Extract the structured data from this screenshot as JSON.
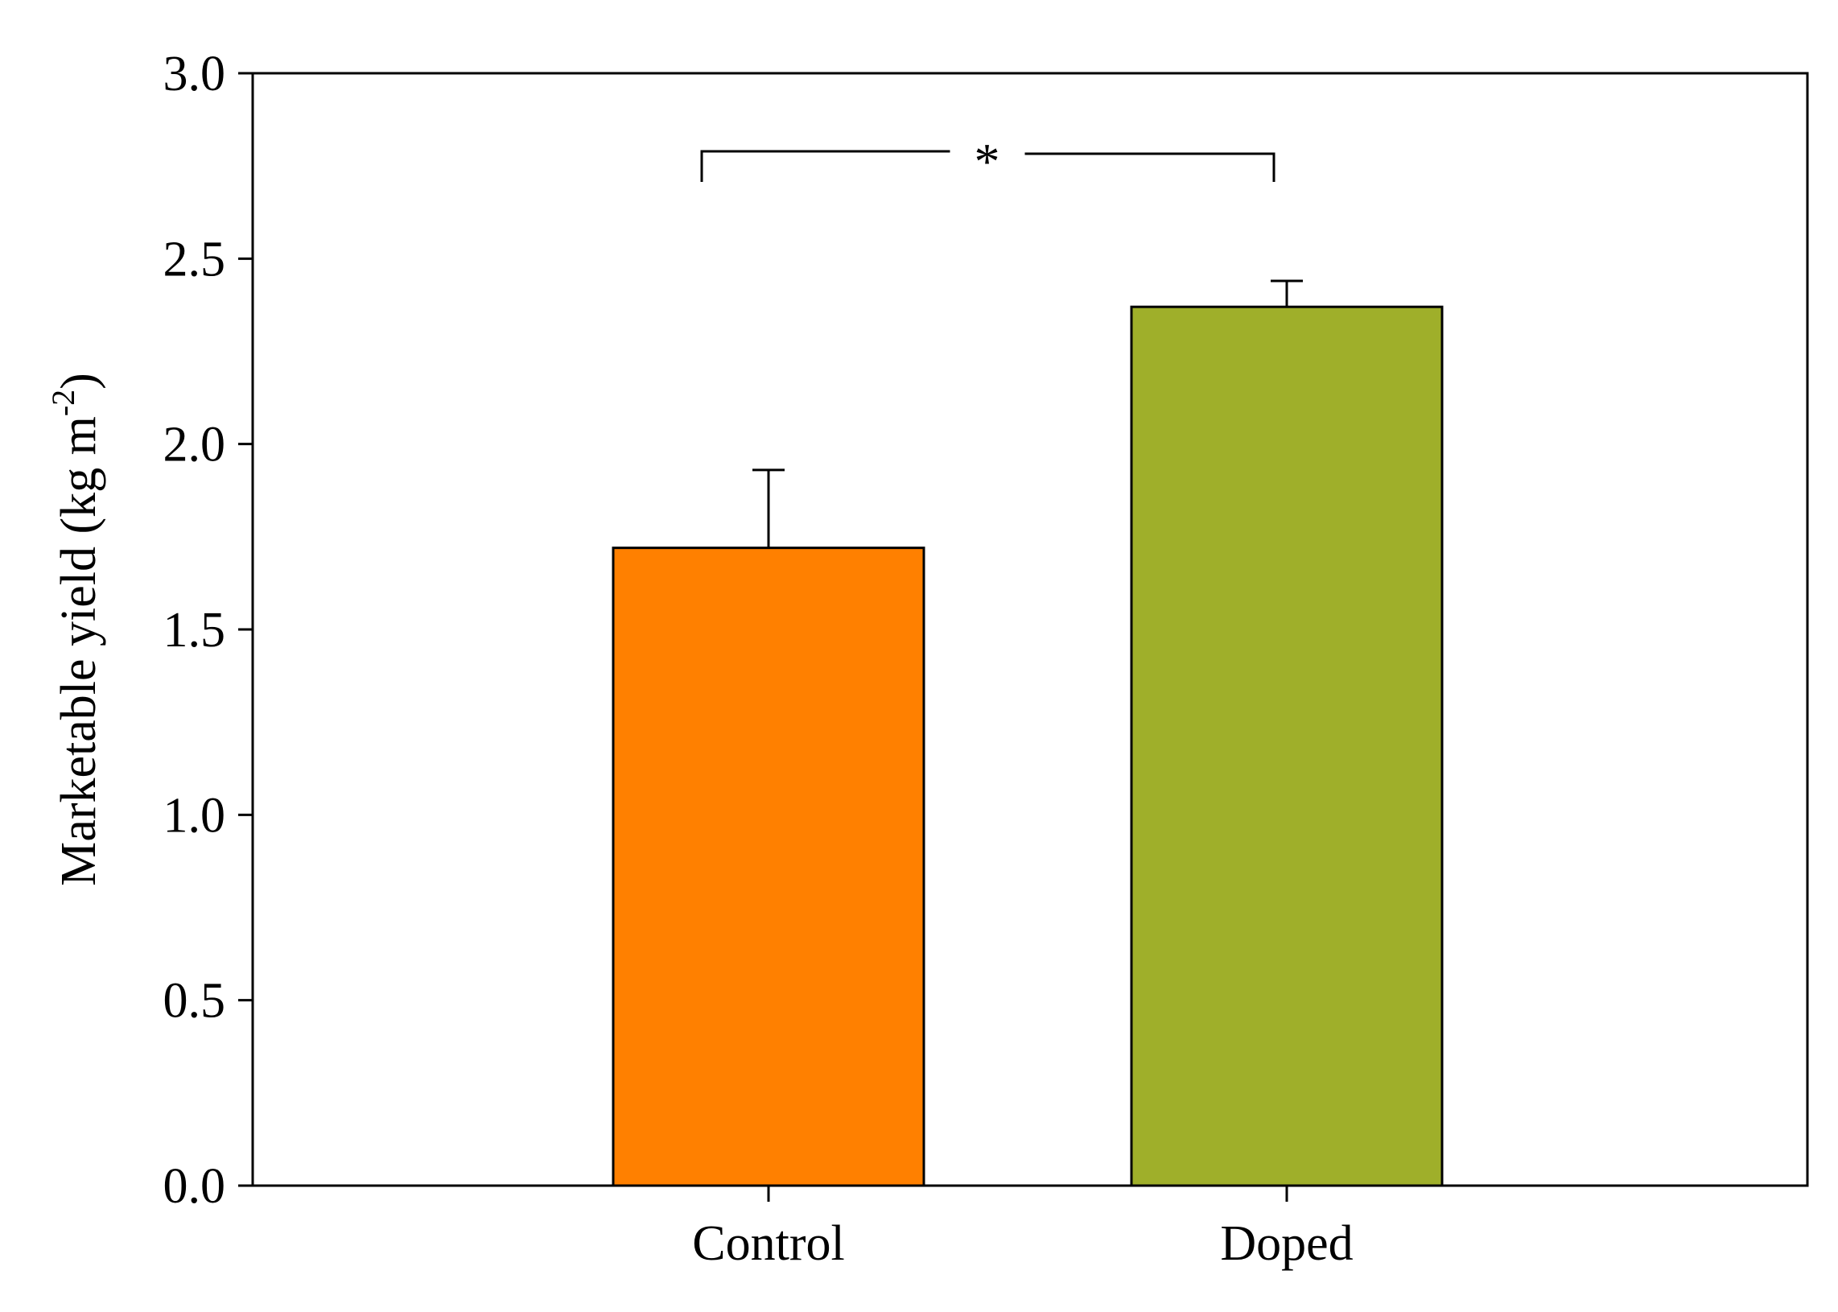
{
  "chart_data": {
    "type": "bar",
    "categories": [
      "Control",
      "Doped"
    ],
    "values": [
      1.72,
      2.37
    ],
    "errors": [
      0.21,
      0.07
    ],
    "colors": [
      "#ff8000",
      "#9faf2a"
    ],
    "ylabel_main": "Marketable yield (kg m",
    "ylabel_sup": "-2",
    "ylabel_end": ")",
    "ylim": [
      0,
      3
    ],
    "yticks": [
      "0.0",
      "0.5",
      "1.0",
      "1.5",
      "2.0",
      "2.5",
      "3.0"
    ],
    "significance": {
      "between": [
        0,
        1
      ],
      "label": "*"
    },
    "grid": false
  }
}
